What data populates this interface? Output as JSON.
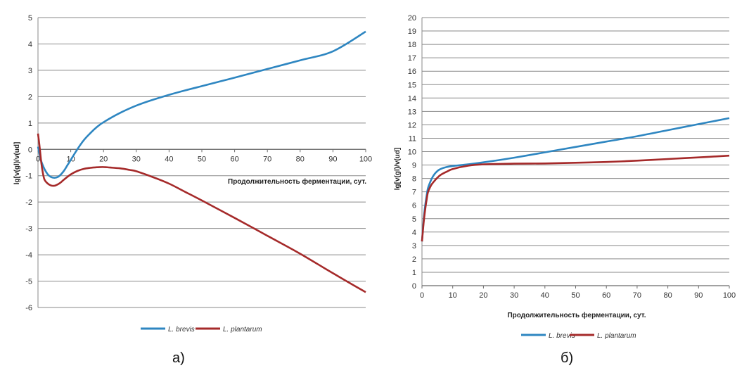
{
  "chart_data": [
    {
      "type": "line",
      "panel_label": "а)",
      "xlabel": "Продолжительность ферментации,  сут.",
      "ylabel": "lg[v(gl)/v(ud]",
      "xlim": [
        0,
        100
      ],
      "ylim": [
        -6,
        5
      ],
      "xticks": [
        0,
        10,
        20,
        30,
        40,
        50,
        60,
        70,
        80,
        90,
        100
      ],
      "yticks": [
        -6,
        -5,
        -4,
        -3,
        -2,
        -1,
        0,
        1,
        2,
        3,
        4,
        5
      ],
      "grid": "horizontal",
      "legend_position": "bottom",
      "series": [
        {
          "name": "L. brevis",
          "color": "#2e86c1",
          "x": [
            0,
            0.5,
            1,
            2,
            3,
            4,
            5,
            6,
            7,
            8,
            9,
            10,
            12,
            14,
            16,
            18,
            20,
            25,
            30,
            35,
            40,
            45,
            50,
            55,
            60,
            70,
            80,
            90,
            100
          ],
          "y": [
            0.1,
            -0.2,
            -0.45,
            -0.75,
            -0.95,
            -1.05,
            -1.08,
            -1.05,
            -0.95,
            -0.8,
            -0.6,
            -0.4,
            0.0,
            0.35,
            0.62,
            0.85,
            1.03,
            1.38,
            1.66,
            1.88,
            2.07,
            2.24,
            2.4,
            2.56,
            2.72,
            3.05,
            3.38,
            3.72,
            4.47
          ]
        },
        {
          "name": "L. plantarum",
          "color": "#a52a2a",
          "x": [
            0,
            0.5,
            1,
            1.5,
            2,
            3,
            4,
            5,
            6,
            7,
            8,
            10,
            12,
            14,
            16,
            18,
            20,
            22,
            25,
            28,
            30,
            35,
            40,
            45,
            50,
            60,
            70,
            80,
            90,
            100
          ],
          "y": [
            0.6,
            0.1,
            -0.5,
            -0.9,
            -1.15,
            -1.3,
            -1.37,
            -1.38,
            -1.33,
            -1.25,
            -1.14,
            -0.95,
            -0.82,
            -0.74,
            -0.7,
            -0.68,
            -0.67,
            -0.69,
            -0.72,
            -0.78,
            -0.83,
            -1.05,
            -1.3,
            -1.62,
            -1.94,
            -2.6,
            -3.28,
            -3.96,
            -4.7,
            -5.42
          ]
        }
      ]
    },
    {
      "type": "line",
      "panel_label": "б)",
      "xlabel": "Продолжительность ферментации, сут.",
      "ylabel": "lg[v(gl)/v(ud]",
      "xlim": [
        0,
        100
      ],
      "ylim": [
        0,
        20
      ],
      "xticks": [
        0,
        10,
        20,
        30,
        40,
        50,
        60,
        70,
        80,
        90,
        100
      ],
      "yticks": [
        0,
        1,
        2,
        3,
        4,
        5,
        6,
        7,
        8,
        9,
        10,
        11,
        12,
        13,
        14,
        15,
        16,
        17,
        18,
        19,
        20
      ],
      "grid": "horizontal",
      "legend_position": "bottom",
      "series": [
        {
          "name": "L. brevis",
          "color": "#2e86c1",
          "x": [
            0,
            0.5,
            1,
            1.5,
            2,
            3,
            4,
            5,
            6,
            8,
            10,
            15,
            20,
            30,
            40,
            50,
            60,
            70,
            80,
            90,
            100
          ],
          "y": [
            3.3,
            4.8,
            5.9,
            6.7,
            7.3,
            7.9,
            8.3,
            8.55,
            8.7,
            8.85,
            8.93,
            9.05,
            9.2,
            9.55,
            9.95,
            10.35,
            10.75,
            11.15,
            11.6,
            12.05,
            12.5
          ]
        },
        {
          "name": "L. plantarum",
          "color": "#a52a2a",
          "x": [
            0,
            0.5,
            1,
            1.5,
            2,
            3,
            4,
            5,
            6,
            8,
            10,
            15,
            20,
            30,
            40,
            50,
            60,
            70,
            80,
            90,
            100
          ],
          "y": [
            3.3,
            4.6,
            5.6,
            6.4,
            7.0,
            7.5,
            7.8,
            8.05,
            8.25,
            8.5,
            8.7,
            8.95,
            9.05,
            9.1,
            9.12,
            9.17,
            9.23,
            9.33,
            9.45,
            9.57,
            9.7
          ]
        }
      ]
    }
  ]
}
